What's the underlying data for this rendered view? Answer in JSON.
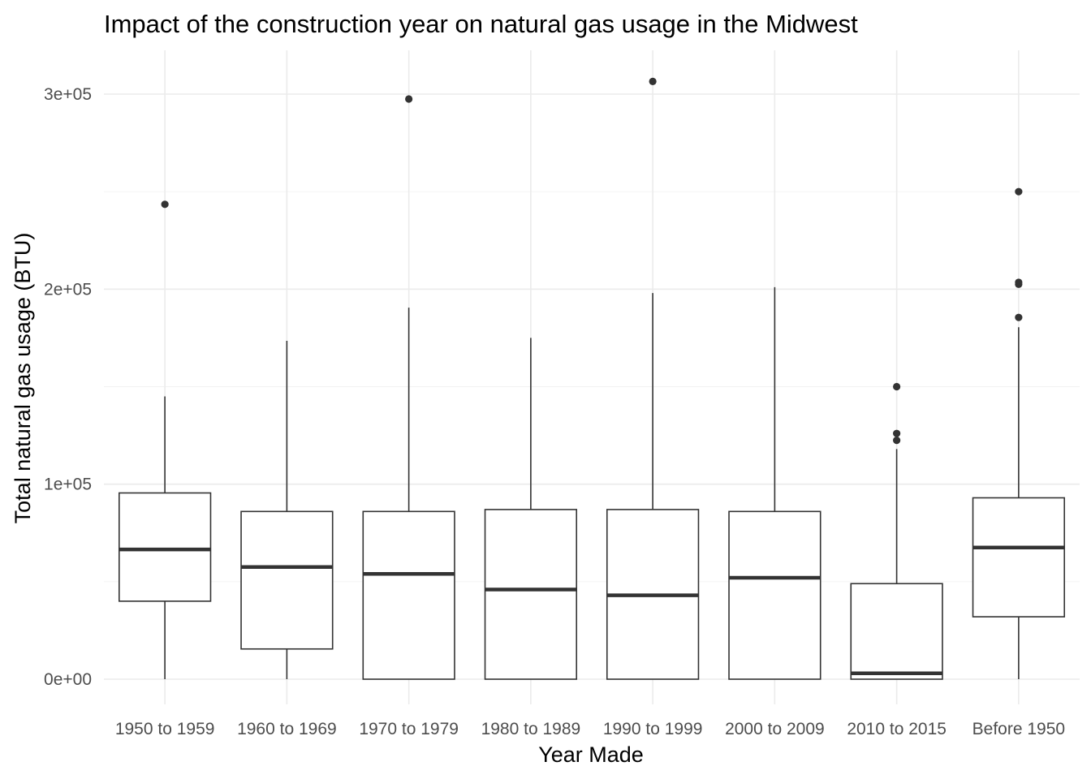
{
  "chart_data": {
    "type": "boxplot",
    "title": "Impact of the construction year on natural gas usage in the Midwest",
    "xlabel": "Year Made",
    "ylabel": "Total natural gas usage (BTU)",
    "ylim": [
      -13000,
      322000
    ],
    "y_ticks": [
      0,
      100000,
      200000,
      300000
    ],
    "y_tick_labels": [
      "0e+00",
      "1e+05",
      "2e+05",
      "3e+05"
    ],
    "grid": true,
    "categories": [
      "1950 to 1959",
      "1960 to 1969",
      "1970 to 1979",
      "1980 to 1989",
      "1990 to 1999",
      "2000 to 2009",
      "2010 to 2015",
      "Before 1950"
    ],
    "boxes": [
      {
        "category": "1950 to 1959",
        "min": 0,
        "q1": 40000,
        "median": 66500,
        "q3": 95500,
        "max": 145000,
        "outliers": [
          243500
        ]
      },
      {
        "category": "1960 to 1969",
        "min": 0,
        "q1": 15500,
        "median": 57500,
        "q3": 86000,
        "max": 173500,
        "outliers": []
      },
      {
        "category": "1970 to 1979",
        "min": 0,
        "q1": 0,
        "median": 54000,
        "q3": 86000,
        "max": 190500,
        "outliers": [
          297500
        ]
      },
      {
        "category": "1980 to 1989",
        "min": 0,
        "q1": 0,
        "median": 46000,
        "q3": 87000,
        "max": 175000,
        "outliers": []
      },
      {
        "category": "1990 to 1999",
        "min": 0,
        "q1": 0,
        "median": 43000,
        "q3": 87000,
        "max": 198000,
        "outliers": [
          306500
        ]
      },
      {
        "category": "2000 to 2009",
        "min": 0,
        "q1": 0,
        "median": 52000,
        "q3": 86000,
        "max": 201000,
        "outliers": []
      },
      {
        "category": "2010 to 2015",
        "min": 0,
        "q1": 0,
        "median": 3000,
        "q3": 49000,
        "max": 118000,
        "outliers": [
          122500,
          126000,
          150000
        ]
      },
      {
        "category": "Before 1950",
        "min": 0,
        "q1": 32000,
        "median": 67500,
        "q3": 93000,
        "max": 180500,
        "outliers": [
          185500,
          202500,
          203500,
          250000
        ]
      }
    ]
  }
}
